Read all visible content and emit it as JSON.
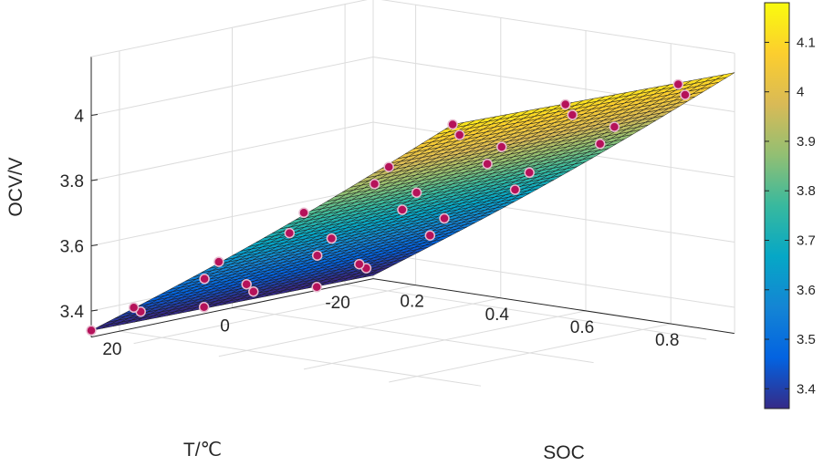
{
  "chart_data": {
    "type": "surface3d",
    "title": "",
    "xlabel": "SOC",
    "ylabel": "T/℃",
    "zlabel": "OCV/V",
    "x_ticks": [
      "0.2",
      "0.4",
      "0.6",
      "0.8"
    ],
    "y_ticks": [
      "20",
      "0",
      "-20"
    ],
    "z_ticks": [
      "3.4",
      "3.6",
      "3.8",
      "4"
    ],
    "colorbar_ticks": [
      "3.4",
      "3.5",
      "3.6",
      "3.7",
      "3.8",
      "3.9",
      "4",
      "4.1"
    ],
    "colorbar_range": [
      3.36,
      4.18
    ],
    "xlim": [
      0.1,
      0.95
    ],
    "ylim": [
      -25,
      25
    ],
    "zlim": [
      3.32,
      4.18
    ],
    "colormap": "parula",
    "grid": true,
    "surface": {
      "soc": [
        0.1,
        0.95
      ],
      "temp": [
        -25,
        25
      ],
      "ocv_corners": {
        "soc0.1_t-25": 3.33,
        "soc0.1_t25": 3.34,
        "soc0.95_t-25": 4.12,
        "soc0.95_t25": 4.14
      }
    },
    "points": [
      {
        "soc": 0.1,
        "t": 25,
        "ocv": 3.34
      },
      {
        "soc": 0.1,
        "t": 5,
        "ocv": 3.34
      },
      {
        "soc": 0.1,
        "t": -15,
        "ocv": 3.33
      },
      {
        "soc": 0.15,
        "t": 20,
        "ocv": 3.39
      },
      {
        "soc": 0.15,
        "t": 0,
        "ocv": 3.38
      },
      {
        "soc": 0.15,
        "t": -20,
        "ocv": 3.38
      },
      {
        "soc": 0.2,
        "t": 25,
        "ocv": 3.43
      },
      {
        "soc": 0.2,
        "t": 5,
        "ocv": 3.43
      },
      {
        "soc": 0.2,
        "t": -15,
        "ocv": 3.42
      },
      {
        "soc": 0.3,
        "t": 20,
        "ocv": 3.52
      },
      {
        "soc": 0.3,
        "t": 0,
        "ocv": 3.52
      },
      {
        "soc": 0.3,
        "t": -20,
        "ocv": 3.51
      },
      {
        "soc": 0.4,
        "t": 25,
        "ocv": 3.61
      },
      {
        "soc": 0.4,
        "t": 5,
        "ocv": 3.61
      },
      {
        "soc": 0.4,
        "t": -15,
        "ocv": 3.6
      },
      {
        "soc": 0.5,
        "t": 20,
        "ocv": 3.7
      },
      {
        "soc": 0.5,
        "t": 0,
        "ocv": 3.7
      },
      {
        "soc": 0.5,
        "t": -20,
        "ocv": 3.69
      },
      {
        "soc": 0.6,
        "t": 25,
        "ocv": 3.8
      },
      {
        "soc": 0.6,
        "t": 5,
        "ocv": 3.79
      },
      {
        "soc": 0.6,
        "t": -15,
        "ocv": 3.78
      },
      {
        "soc": 0.7,
        "t": 20,
        "ocv": 3.89
      },
      {
        "soc": 0.7,
        "t": 0,
        "ocv": 3.88
      },
      {
        "soc": 0.7,
        "t": -20,
        "ocv": 3.87
      },
      {
        "soc": 0.8,
        "t": 25,
        "ocv": 3.98
      },
      {
        "soc": 0.8,
        "t": 5,
        "ocv": 3.97
      },
      {
        "soc": 0.8,
        "t": -15,
        "ocv": 3.96
      },
      {
        "soc": 0.9,
        "t": 20,
        "ocv": 4.08
      },
      {
        "soc": 0.9,
        "t": 0,
        "ocv": 4.07
      },
      {
        "soc": 0.9,
        "t": -20,
        "ocv": 4.06
      },
      {
        "soc": 0.95,
        "t": 25,
        "ocv": 4.14
      },
      {
        "soc": 0.95,
        "t": 5,
        "ocv": 4.13
      },
      {
        "soc": 0.95,
        "t": -15,
        "ocv": 4.12
      }
    ]
  }
}
